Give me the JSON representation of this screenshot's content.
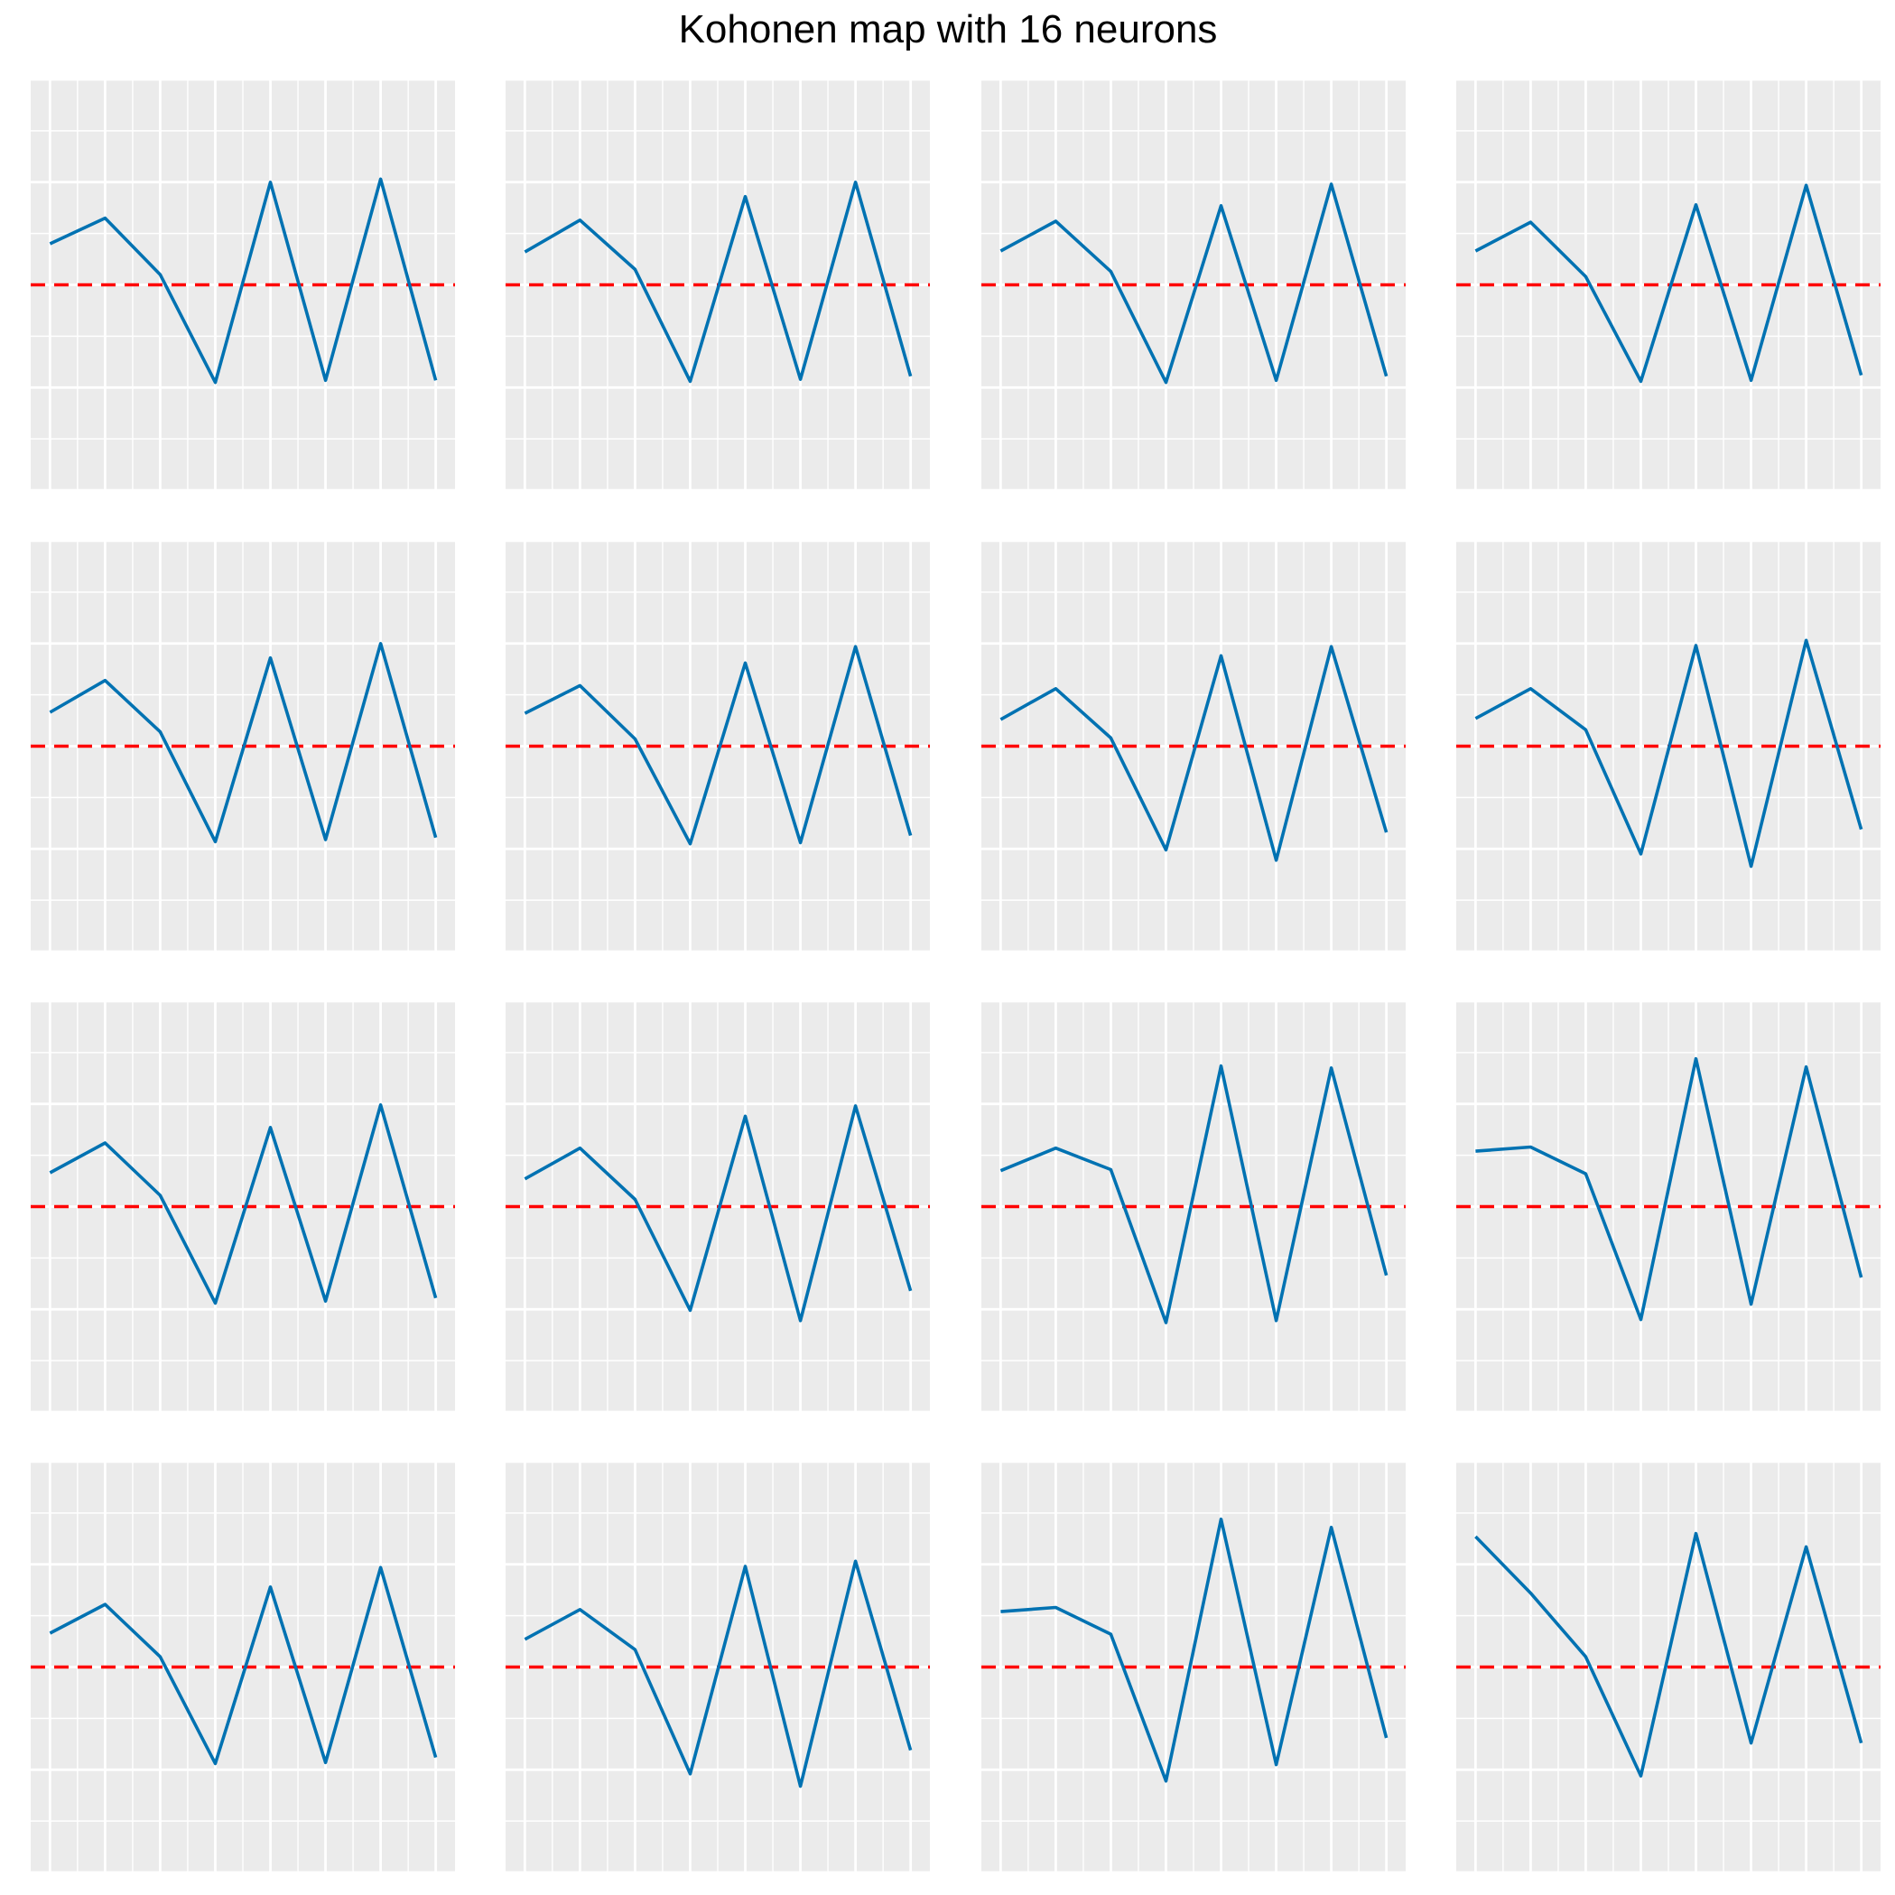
{
  "title": "Kohonen map with 16 neurons",
  "colors": {
    "panel_background": "#EBEBEB",
    "grid": "#FFFFFF",
    "series_line": "#0072B2",
    "reference_line": "#FF0000"
  },
  "chart_data": {
    "type": "line",
    "title": "Kohonen map with 16 neurons",
    "layout": "4x4 grid of small multiples",
    "x": [
      1,
      2,
      3,
      4,
      5,
      6,
      7,
      8
    ],
    "xlim": [
      0.65,
      8.35
    ],
    "ylim": [
      -2,
      2
    ],
    "grid": true,
    "axis_labels_shown": false,
    "reference_line": {
      "y": 0,
      "style": "dashed",
      "color": "#FF0000"
    },
    "neurons": [
      {
        "values": [
          0.4,
          0.65,
          0.1,
          -0.95,
          1.0,
          -0.93,
          1.03,
          -0.93
        ]
      },
      {
        "values": [
          0.32,
          0.63,
          0.15,
          -0.94,
          0.86,
          -0.92,
          1.0,
          -0.89
        ]
      },
      {
        "values": [
          0.33,
          0.62,
          0.13,
          -0.95,
          0.77,
          -0.93,
          0.98,
          -0.89
        ]
      },
      {
        "values": [
          0.33,
          0.61,
          0.08,
          -0.94,
          0.78,
          -0.93,
          0.97,
          -0.88
        ]
      },
      {
        "values": [
          0.33,
          0.64,
          0.14,
          -0.93,
          0.86,
          -0.91,
          1.0,
          -0.89
        ]
      },
      {
        "values": [
          0.32,
          0.59,
          0.07,
          -0.95,
          0.81,
          -0.94,
          0.97,
          -0.87
        ]
      },
      {
        "values": [
          0.26,
          0.56,
          0.08,
          -1.01,
          0.88,
          -1.11,
          0.97,
          -0.84
        ]
      },
      {
        "values": [
          0.27,
          0.56,
          0.16,
          -1.05,
          0.98,
          -1.17,
          1.03,
          -0.81
        ]
      },
      {
        "values": [
          0.33,
          0.62,
          0.11,
          -0.94,
          0.77,
          -0.92,
          0.99,
          -0.89
        ]
      },
      {
        "values": [
          0.27,
          0.57,
          0.07,
          -1.01,
          0.88,
          -1.11,
          0.98,
          -0.82
        ]
      },
      {
        "values": [
          0.35,
          0.57,
          0.36,
          -1.13,
          1.37,
          -1.11,
          1.35,
          -0.67
        ]
      },
      {
        "values": [
          0.54,
          0.58,
          0.32,
          -1.1,
          1.44,
          -0.95,
          1.36,
          -0.69
        ]
      },
      {
        "values": [
          0.33,
          0.61,
          0.1,
          -0.94,
          0.78,
          -0.93,
          0.97,
          -0.88
        ]
      },
      {
        "values": [
          0.27,
          0.56,
          0.17,
          -1.04,
          0.98,
          -1.16,
          1.03,
          -0.81
        ]
      },
      {
        "values": [
          0.54,
          0.58,
          0.32,
          -1.11,
          1.44,
          -0.95,
          1.36,
          -0.69
        ]
      },
      {
        "values": [
          1.27,
          0.72,
          0.1,
          -1.06,
          1.3,
          -0.74,
          1.17,
          -0.74
        ]
      }
    ]
  }
}
